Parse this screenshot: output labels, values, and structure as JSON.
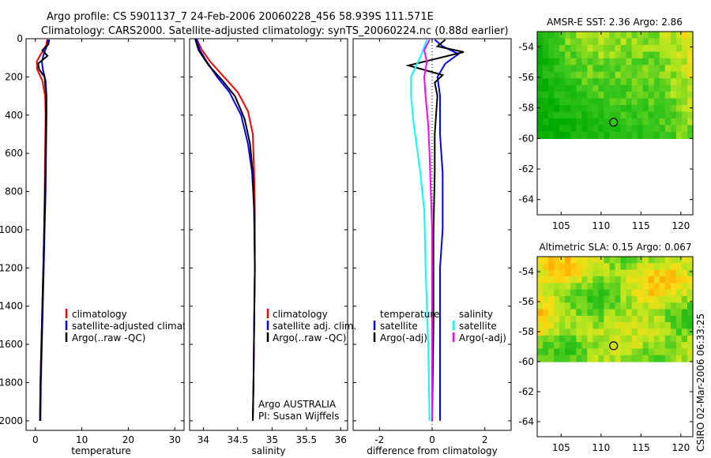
{
  "header": {
    "title_line1": "Argo profile: CS 5901137_7 24-Feb-2006 20060228_456 58.939S 111.571E",
    "title_line2": "Climatology: CARS2000. Satellite-adjusted climatology: synTS_20060224.nc (0.88d earlier)"
  },
  "footer_stamp": "CSIRO 02-Mar-2006 06:33:25",
  "colors": {
    "red": "#ff0000",
    "blue": "#0000ff",
    "black": "#000000",
    "cyan": "#00ffff",
    "magenta": "#ff00ff"
  },
  "chart_data": [
    {
      "type": "line",
      "name": "temperature-panel",
      "xlabel": "temperature",
      "ylabel": "",
      "xlim": [
        -2,
        32
      ],
      "ylim": [
        0,
        2050
      ],
      "y_reversed": true,
      "x_ticks": [
        0,
        10,
        20,
        30
      ],
      "y_ticks": [
        0,
        200,
        400,
        600,
        800,
        1000,
        1200,
        1400,
        1600,
        1800,
        2000
      ],
      "legend": [
        "climatology",
        "satellite-adjusted climatology",
        "Argo(..raw -QC)"
      ],
      "series": [
        {
          "name": "climatology",
          "color": "red",
          "points": [
            [
              2.5,
              5
            ],
            [
              2.4,
              30
            ],
            [
              1.2,
              80
            ],
            [
              0.3,
              120
            ],
            [
              0.4,
              160
            ],
            [
              1.5,
              220
            ],
            [
              2.1,
              300
            ],
            [
              2.2,
              400
            ],
            [
              2.1,
              600
            ],
            [
              2.0,
              800
            ],
            [
              1.9,
              1000
            ],
            [
              1.7,
              1200
            ],
            [
              1.5,
              1400
            ],
            [
              1.3,
              1600
            ],
            [
              1.1,
              1800
            ],
            [
              1.0,
              2000
            ]
          ]
        },
        {
          "name": "satellite-adjusted climatology",
          "color": "blue",
          "points": [
            [
              2.6,
              5
            ],
            [
              2.6,
              30
            ],
            [
              1.8,
              80
            ],
            [
              1.4,
              120
            ],
            [
              1.6,
              160
            ],
            [
              2.2,
              220
            ],
            [
              2.4,
              300
            ],
            [
              2.4,
              400
            ],
            [
              2.3,
              600
            ],
            [
              2.2,
              800
            ],
            [
              2.0,
              1000
            ],
            [
              1.8,
              1200
            ],
            [
              1.6,
              1400
            ],
            [
              1.4,
              1600
            ],
            [
              1.2,
              1800
            ],
            [
              1.1,
              2000
            ]
          ]
        },
        {
          "name": "Argo(..raw -QC)",
          "color": "black",
          "points": [
            [
              3.0,
              5
            ],
            [
              2.8,
              30
            ],
            [
              1.5,
              60
            ],
            [
              2.6,
              90
            ],
            [
              0.6,
              130
            ],
            [
              0.8,
              160
            ],
            [
              2.0,
              200
            ],
            [
              2.3,
              300
            ],
            [
              2.3,
              400
            ],
            [
              2.2,
              600
            ],
            [
              2.1,
              800
            ],
            [
              1.9,
              1000
            ],
            [
              1.7,
              1200
            ],
            [
              1.5,
              1400
            ],
            [
              1.3,
              1600
            ],
            [
              1.1,
              1800
            ],
            [
              1.0,
              2000
            ]
          ]
        }
      ]
    },
    {
      "type": "line",
      "name": "salinity-panel",
      "xlabel": "salinity",
      "xlim": [
        33.8,
        36.1
      ],
      "ylim": [
        0,
        2050
      ],
      "y_reversed": true,
      "x_ticks": [
        34,
        34.5,
        35,
        35.5,
        36
      ],
      "x_tick_labels": [
        "34",
        "34.5",
        "35",
        "35.5",
        "36"
      ],
      "legend": [
        "climatology",
        "satellite adj. clim.",
        "Argo(..raw -QC)"
      ],
      "annotation": [
        "Argo AUSTRALIA",
        "PI: Susan Wijffels"
      ],
      "series": [
        {
          "name": "climatology",
          "color": "red",
          "points": [
            [
              33.9,
              0
            ],
            [
              33.98,
              60
            ],
            [
              34.1,
              120
            ],
            [
              34.3,
              200
            ],
            [
              34.5,
              280
            ],
            [
              34.65,
              380
            ],
            [
              34.72,
              500
            ],
            [
              34.74,
              700
            ],
            [
              34.75,
              900
            ],
            [
              34.75,
              1200
            ],
            [
              34.74,
              1500
            ],
            [
              34.73,
              1800
            ],
            [
              34.72,
              2000
            ]
          ]
        },
        {
          "name": "satellite adj. clim.",
          "color": "blue",
          "points": [
            [
              33.9,
              0
            ],
            [
              33.95,
              60
            ],
            [
              34.05,
              120
            ],
            [
              34.2,
              200
            ],
            [
              34.38,
              280
            ],
            [
              34.55,
              400
            ],
            [
              34.65,
              550
            ],
            [
              34.71,
              700
            ],
            [
              34.74,
              900
            ],
            [
              34.75,
              1200
            ],
            [
              34.74,
              1500
            ],
            [
              34.73,
              1800
            ],
            [
              34.72,
              2000
            ]
          ]
        },
        {
          "name": "Argo(..raw -QC)",
          "color": "black",
          "points": [
            [
              33.88,
              0
            ],
            [
              33.93,
              60
            ],
            [
              34.08,
              140
            ],
            [
              34.28,
              220
            ],
            [
              34.46,
              300
            ],
            [
              34.6,
              420
            ],
            [
              34.68,
              550
            ],
            [
              34.72,
              700
            ],
            [
              34.74,
              900
            ],
            [
              34.75,
              1200
            ],
            [
              34.74,
              1500
            ],
            [
              34.73,
              1800
            ],
            [
              34.72,
              2000
            ]
          ]
        }
      ]
    },
    {
      "type": "line",
      "name": "difference-panel",
      "xlabel": "difference from climatology",
      "xlim": [
        -3,
        3
      ],
      "ylim": [
        0,
        2050
      ],
      "y_reversed": true,
      "x_ticks": [
        -2,
        0,
        2
      ],
      "x_tick_labels": [
        "-2",
        "0",
        "2"
      ],
      "legend_temperature_title": "temperature",
      "legend_temperature": [
        "satellite",
        "Argo(-adj)"
      ],
      "legend_salinity_title": "salinity",
      "legend_salinity": [
        "satellite",
        "Argo(-adj)"
      ],
      "series": [
        {
          "name": "temperature satellite",
          "color": "blue",
          "points": [
            [
              0.1,
              5
            ],
            [
              0.4,
              40
            ],
            [
              1.0,
              80
            ],
            [
              0.5,
              130
            ],
            [
              0.2,
              200
            ],
            [
              0.3,
              300
            ],
            [
              0.3,
              500
            ],
            [
              0.4,
              700
            ],
            [
              0.4,
              1000
            ],
            [
              0.3,
              1200
            ],
            [
              0.3,
              1500
            ],
            [
              0.3,
              1800
            ],
            [
              0.3,
              2000
            ]
          ]
        },
        {
          "name": "temperature Argo(-adj)",
          "color": "black",
          "points": [
            [
              0.5,
              5
            ],
            [
              0.2,
              40
            ],
            [
              1.2,
              70
            ],
            [
              -0.9,
              140
            ],
            [
              0.4,
              190
            ],
            [
              0.1,
              230
            ],
            [
              0.2,
              300
            ],
            [
              0.1,
              500
            ],
            [
              0.1,
              700
            ],
            [
              0.05,
              1000
            ],
            [
              0.05,
              1500
            ],
            [
              0.0,
              2000
            ]
          ]
        },
        {
          "name": "salinity satellite",
          "color": "cyan",
          "points": [
            [
              -0.2,
              5
            ],
            [
              -0.4,
              80
            ],
            [
              -0.8,
              200
            ],
            [
              -0.8,
              300
            ],
            [
              -0.7,
              450
            ],
            [
              -0.45,
              700
            ],
            [
              -0.3,
              900
            ],
            [
              -0.25,
              1200
            ],
            [
              -0.15,
              1600
            ],
            [
              -0.1,
              2000
            ]
          ]
        },
        {
          "name": "salinity Argo(-adj)",
          "color": "magenta",
          "points": [
            [
              -0.1,
              5
            ],
            [
              -0.3,
              60
            ],
            [
              -0.2,
              120
            ],
            [
              -0.3,
              200
            ],
            [
              -0.25,
              300
            ],
            [
              -0.15,
              450
            ],
            [
              -0.1,
              600
            ],
            [
              -0.05,
              800
            ],
            [
              0.0,
              1000
            ],
            [
              0.0,
              1500
            ],
            [
              0.0,
              2000
            ]
          ]
        }
      ]
    },
    {
      "type": "heatmap",
      "name": "sst-map",
      "title": "AMSR-E SST: 2.36 Argo: 2.86",
      "xlim": [
        102,
        121.5
      ],
      "ylim": [
        -65,
        -53
      ],
      "x_ticks": [
        105,
        110,
        115,
        120
      ],
      "y_ticks": [
        -54,
        -56,
        -58,
        -60,
        -62,
        -64
      ],
      "data_extent_lat": [
        -60,
        -53
      ],
      "argo_marker": [
        111.571,
        -58.939
      ]
    },
    {
      "type": "heatmap",
      "name": "sla-map",
      "title": "Altimetric SLA: 0.15 Argo: 0.067",
      "xlim": [
        102,
        121.5
      ],
      "ylim": [
        -65,
        -53
      ],
      "x_ticks": [
        105,
        110,
        115,
        120
      ],
      "y_ticks": [
        -54,
        -56,
        -58,
        -60,
        -62,
        -64
      ],
      "data_extent_lat": [
        -60,
        -53
      ],
      "argo_marker": [
        111.571,
        -58.939
      ]
    }
  ]
}
